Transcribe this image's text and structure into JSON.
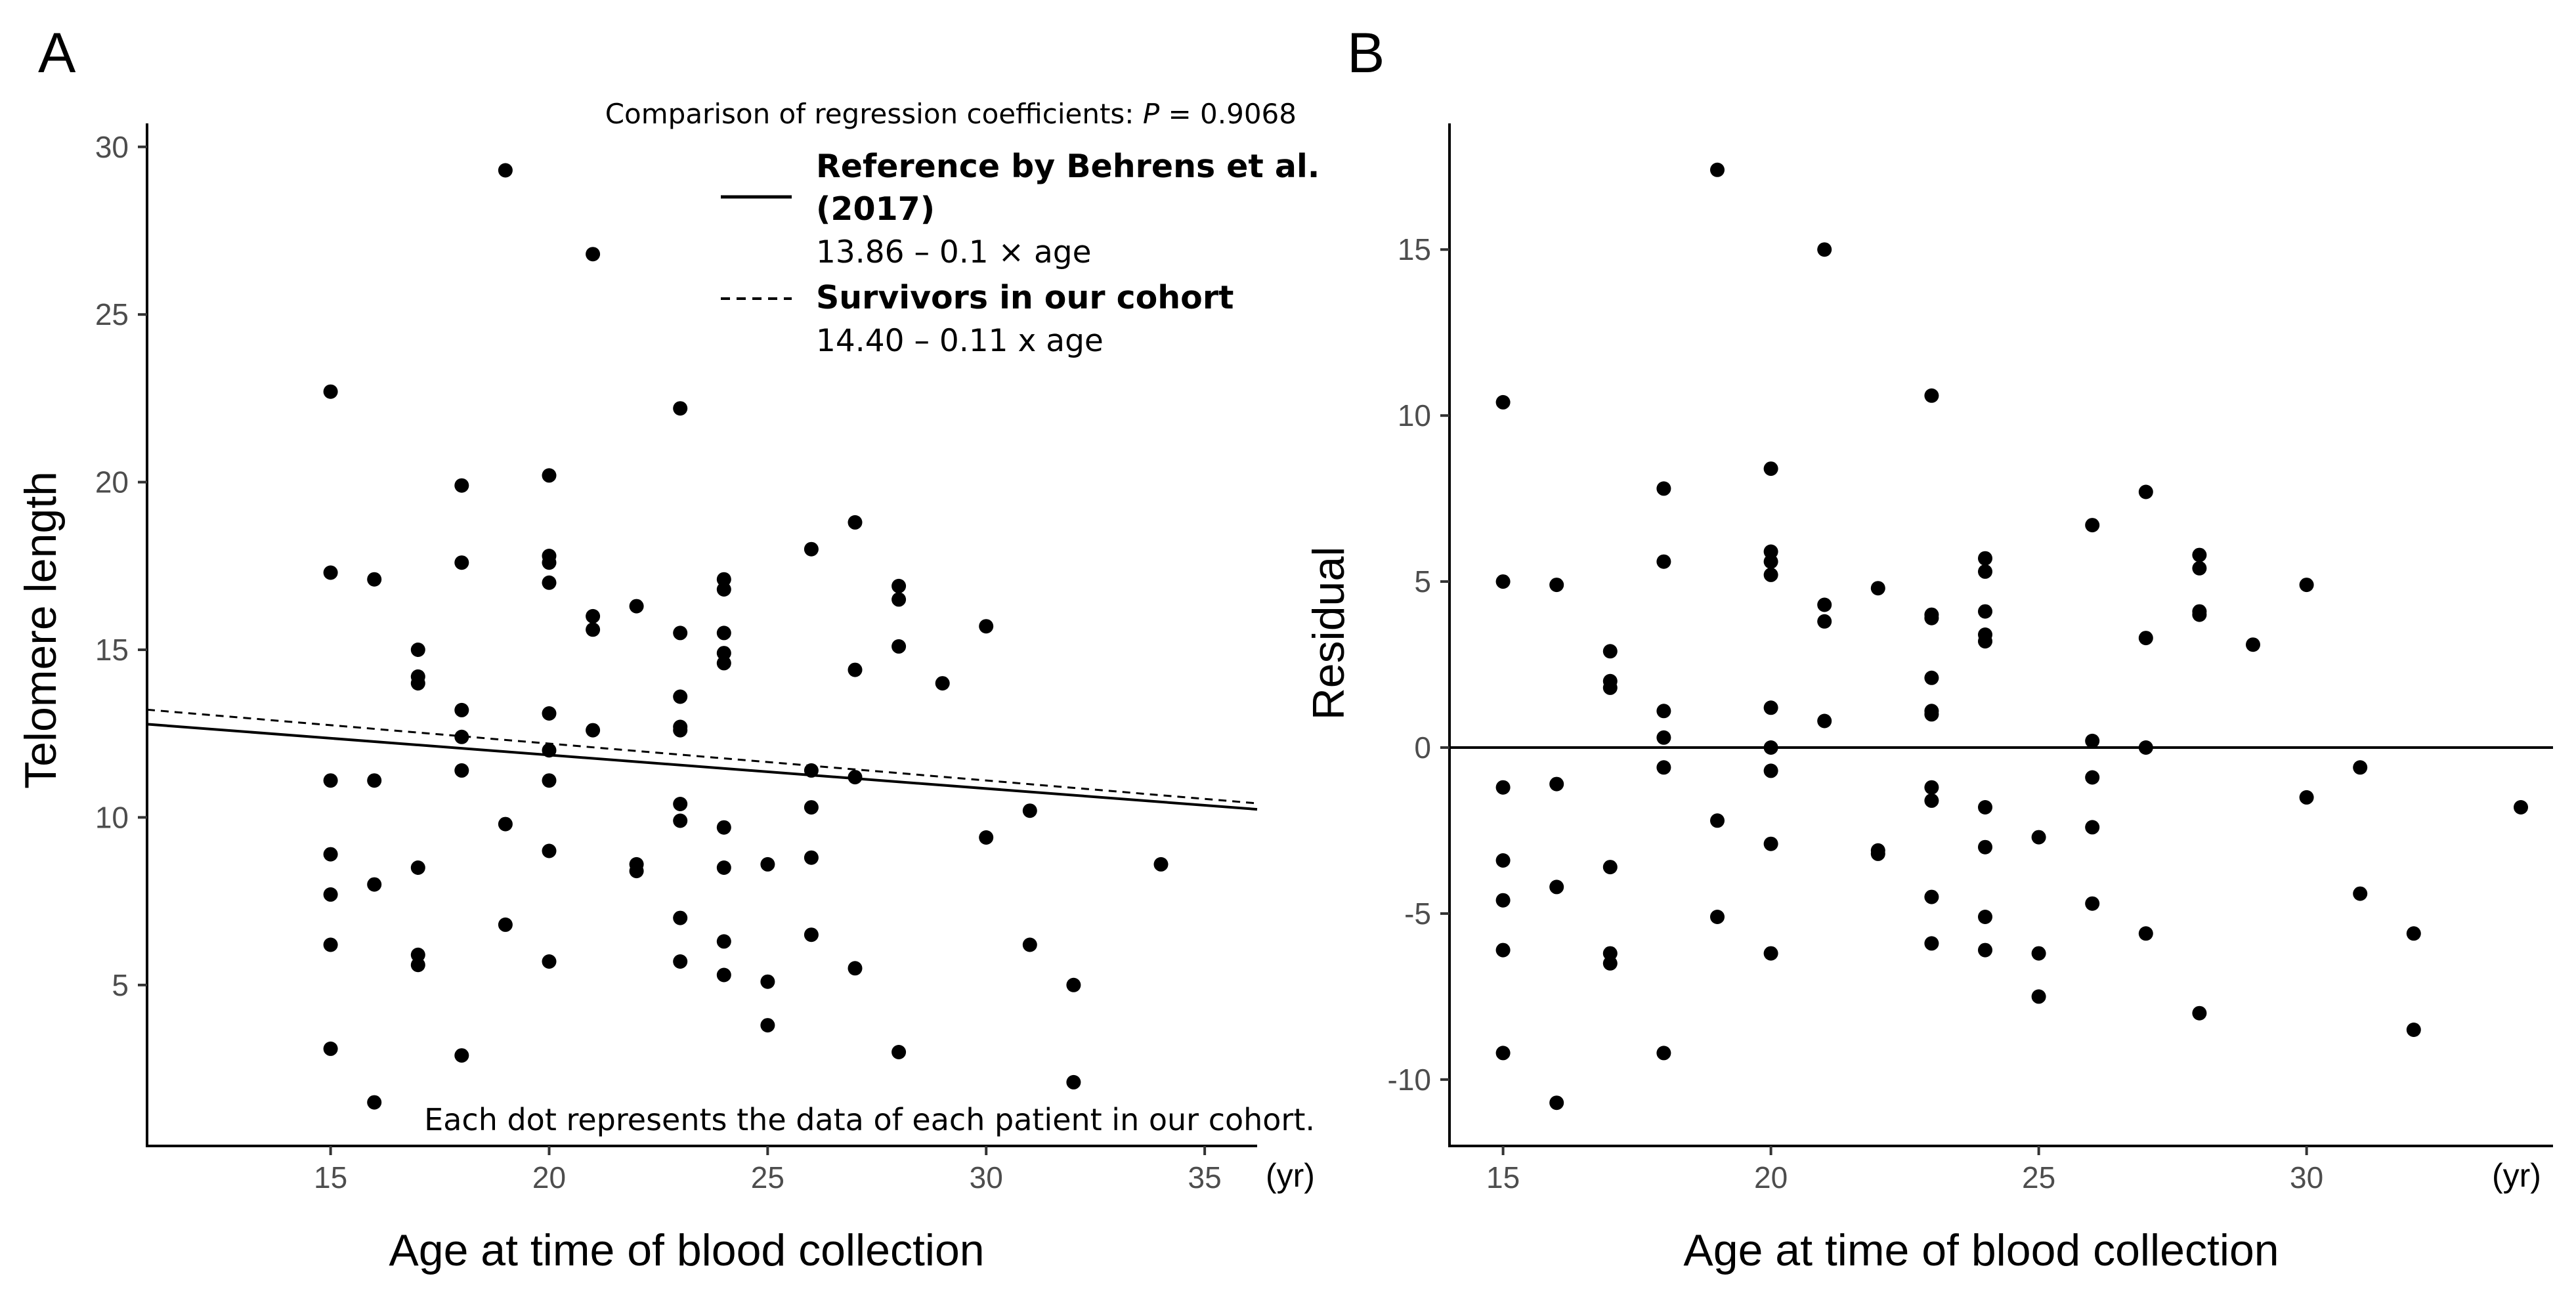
{
  "chart_data": [
    {
      "panel": "A",
      "type": "scatter",
      "xlabel": "Age at time of blood collection",
      "ylabel": "Telomere length",
      "x_unit": "(yr)",
      "xlim": [
        10.8,
        36.2
      ],
      "ylim": [
        0.2,
        30.7
      ],
      "xticks": [
        15,
        20,
        25,
        30,
        35
      ],
      "yticks": [
        5,
        10,
        15,
        20,
        25,
        30
      ],
      "grid": false,
      "legend_position": "top-right",
      "comparison_text": "Comparison of regression coefficients: ",
      "comparison_p_symbol": "P",
      "comparison_p_value": " = 0.9068",
      "footnote": "Each dot represents the data of each patient in our cohort.",
      "lines": [
        {
          "name_line1": "Reference by Behrens et al.",
          "name_line2": "(2017)",
          "equation": "13.86 – 0.1 × age",
          "style": "solid",
          "intercept": 13.86,
          "slope": -0.1
        },
        {
          "name_line1": "Survivors in our cohort",
          "equation": "14.40 – 0.11 x age",
          "style": "dashed",
          "intercept": 14.4,
          "slope": -0.11
        }
      ],
      "points": [
        [
          15,
          22.7
        ],
        [
          15,
          17.3
        ],
        [
          15,
          11.1
        ],
        [
          15,
          8.9
        ],
        [
          15,
          7.7
        ],
        [
          15,
          6.2
        ],
        [
          15,
          3.1
        ],
        [
          16,
          17.1
        ],
        [
          16,
          11.1
        ],
        [
          16,
          8.0
        ],
        [
          16,
          1.5
        ],
        [
          17,
          15.0
        ],
        [
          17,
          14.2
        ],
        [
          17,
          14.0
        ],
        [
          17,
          8.5
        ],
        [
          17,
          5.9
        ],
        [
          17,
          5.6
        ],
        [
          18,
          19.9
        ],
        [
          18,
          17.6
        ],
        [
          18,
          13.2
        ],
        [
          18,
          12.4
        ],
        [
          18,
          11.4
        ],
        [
          18,
          2.9
        ],
        [
          19,
          29.3
        ],
        [
          19,
          9.8
        ],
        [
          19,
          6.8
        ],
        [
          20,
          20.2
        ],
        [
          20,
          17.8
        ],
        [
          20,
          17.6
        ],
        [
          20,
          17.0
        ],
        [
          20,
          13.1
        ],
        [
          20,
          12.0
        ],
        [
          20,
          11.1
        ],
        [
          20,
          9.0
        ],
        [
          20,
          5.7
        ],
        [
          21,
          26.8
        ],
        [
          21,
          16.0
        ],
        [
          21,
          15.6
        ],
        [
          21,
          12.6
        ],
        [
          22,
          16.3
        ],
        [
          22,
          8.6
        ],
        [
          22,
          8.4
        ],
        [
          23,
          22.2
        ],
        [
          23,
          15.5
        ],
        [
          23,
          13.6
        ],
        [
          23,
          12.6
        ],
        [
          23,
          12.7
        ],
        [
          23,
          10.4
        ],
        [
          23,
          9.9
        ],
        [
          23,
          7.0
        ],
        [
          23,
          5.7
        ],
        [
          24,
          17.1
        ],
        [
          24,
          16.8
        ],
        [
          24,
          15.5
        ],
        [
          24,
          14.9
        ],
        [
          24,
          14.6
        ],
        [
          24,
          9.7
        ],
        [
          24,
          8.5
        ],
        [
          24,
          6.3
        ],
        [
          24,
          5.3
        ],
        [
          25,
          8.6
        ],
        [
          25,
          5.1
        ],
        [
          25,
          3.8
        ],
        [
          26,
          18.0
        ],
        [
          26,
          11.4
        ],
        [
          26,
          10.3
        ],
        [
          26,
          8.8
        ],
        [
          26,
          6.5
        ],
        [
          27,
          18.8
        ],
        [
          27,
          14.4
        ],
        [
          27,
          11.2
        ],
        [
          27,
          5.5
        ],
        [
          28,
          16.9
        ],
        [
          28,
          16.5
        ],
        [
          28,
          15.1
        ],
        [
          28,
          3.0
        ],
        [
          29,
          14.0
        ],
        [
          30,
          15.7
        ],
        [
          30,
          9.4
        ],
        [
          31,
          10.2
        ],
        [
          31,
          6.2
        ],
        [
          32,
          5.0
        ],
        [
          32,
          2.1
        ],
        [
          34,
          8.6
        ]
      ]
    },
    {
      "panel": "B",
      "type": "scatter",
      "xlabel": "Age at time of blood collection",
      "ylabel": "Residual",
      "x_unit": "(yr)",
      "xlim": [
        14.0,
        34.6
      ],
      "ylim": [
        -12.0,
        18.8
      ],
      "xticks": [
        15,
        20,
        25,
        30
      ],
      "yticks": [
        -10,
        -5,
        0,
        5,
        10,
        15
      ],
      "grid": false,
      "reference_line_y": 0,
      "points": [
        [
          15,
          10.4
        ],
        [
          15,
          5.0
        ],
        [
          15,
          -1.2
        ],
        [
          15,
          -3.4
        ],
        [
          15,
          -4.6
        ],
        [
          15,
          -6.1
        ],
        [
          15,
          -9.2
        ],
        [
          16,
          4.9
        ],
        [
          16,
          -1.1
        ],
        [
          16,
          -4.2
        ],
        [
          16,
          -10.7
        ],
        [
          17,
          2.9
        ],
        [
          17,
          2.0
        ],
        [
          17,
          1.8
        ],
        [
          17,
          -3.6
        ],
        [
          17,
          -6.2
        ],
        [
          17,
          -6.5
        ],
        [
          18,
          7.8
        ],
        [
          18,
          5.6
        ],
        [
          18,
          1.1
        ],
        [
          18,
          0.3
        ],
        [
          18,
          -0.6
        ],
        [
          18,
          -9.2
        ],
        [
          19,
          17.4
        ],
        [
          19,
          -2.2
        ],
        [
          19,
          -5.1
        ],
        [
          20,
          8.4
        ],
        [
          20,
          5.9
        ],
        [
          20,
          5.6
        ],
        [
          20,
          5.2
        ],
        [
          20,
          1.2
        ],
        [
          20,
          0.0
        ],
        [
          20,
          -0.7
        ],
        [
          20,
          -2.9
        ],
        [
          20,
          -6.2
        ],
        [
          21,
          15.0
        ],
        [
          21,
          4.3
        ],
        [
          21,
          3.8
        ],
        [
          21,
          0.8
        ],
        [
          22,
          4.8
        ],
        [
          22,
          -3.1
        ],
        [
          22,
          -3.2
        ],
        [
          23,
          10.6
        ],
        [
          23,
          4.0
        ],
        [
          23,
          3.9
        ],
        [
          23,
          2.1
        ],
        [
          23,
          1.1
        ],
        [
          23,
          1.0
        ],
        [
          23,
          -1.2
        ],
        [
          23,
          -1.6
        ],
        [
          23,
          -4.5
        ],
        [
          23,
          -5.9
        ],
        [
          24,
          5.7
        ],
        [
          24,
          5.3
        ],
        [
          24,
          4.1
        ],
        [
          24,
          3.4
        ],
        [
          24,
          3.2
        ],
        [
          24,
          -1.8
        ],
        [
          24,
          -3.0
        ],
        [
          24,
          -5.1
        ],
        [
          24,
          -6.1
        ],
        [
          25,
          -2.7
        ],
        [
          25,
          -6.2
        ],
        [
          25,
          -7.5
        ],
        [
          26,
          6.7
        ],
        [
          26,
          0.2
        ],
        [
          26,
          -0.9
        ],
        [
          26,
          -2.4
        ],
        [
          26,
          -4.7
        ],
        [
          27,
          7.7
        ],
        [
          27,
          3.3
        ],
        [
          27,
          0.0
        ],
        [
          27,
          -5.6
        ],
        [
          28,
          5.8
        ],
        [
          28,
          5.4
        ],
        [
          28,
          4.1
        ],
        [
          28,
          4.0
        ],
        [
          28,
          -8.0
        ],
        [
          29,
          3.1
        ],
        [
          30,
          4.9
        ],
        [
          30,
          -1.5
        ],
        [
          31,
          -0.6
        ],
        [
          31,
          -4.4
        ],
        [
          32,
          -5.6
        ],
        [
          32,
          -8.5
        ],
        [
          34,
          -1.8
        ]
      ]
    }
  ]
}
